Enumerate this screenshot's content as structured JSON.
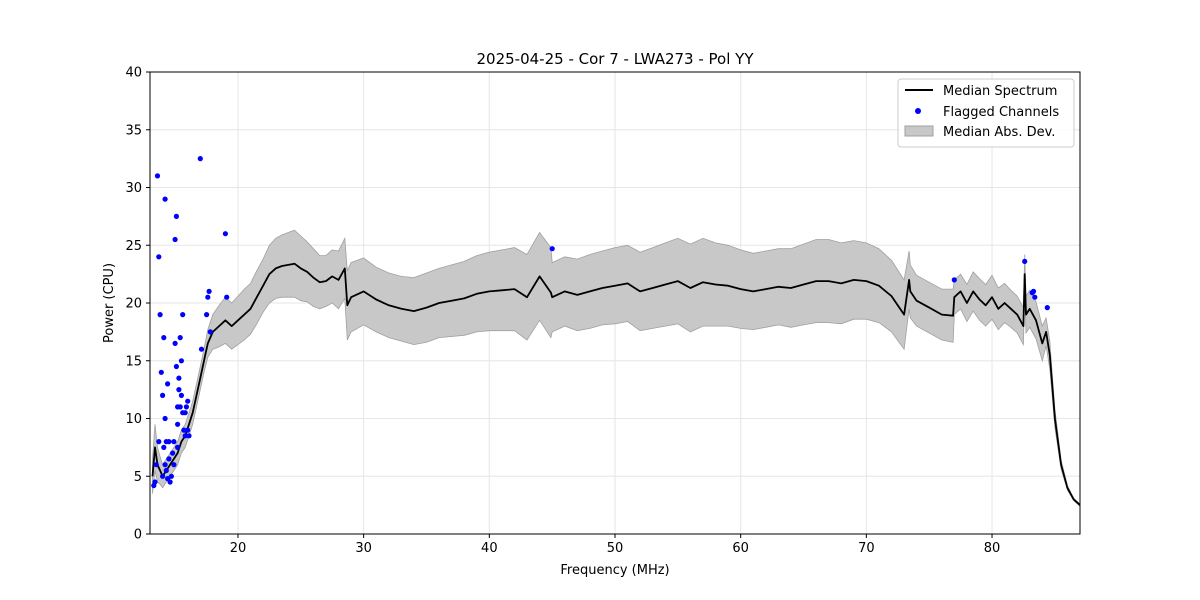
{
  "chart_data": {
    "type": "line",
    "title": "2025-04-25 - Cor 7 - LWA273 - Pol YY",
    "xlabel": "Frequency (MHz)",
    "ylabel": "Power (CPU)",
    "xlim": [
      13.0,
      87.0
    ],
    "ylim": [
      0,
      40
    ],
    "xticks": [
      20,
      30,
      40,
      50,
      60,
      70,
      80
    ],
    "yticks": [
      0,
      5,
      10,
      15,
      20,
      25,
      30,
      35,
      40
    ],
    "grid": true,
    "legend_position": "top-right",
    "legend": [
      "Median Spectrum",
      "Flagged Channels",
      "Median Abs. Dev."
    ],
    "colors": {
      "median": "#000000",
      "flagged": "#0000ff",
      "mad_fill": "#c8c8c8",
      "mad_edge": "#a0a0a0"
    },
    "series": [
      {
        "name": "Median Spectrum",
        "x": [
          13.2,
          13.4,
          13.6,
          13.8,
          14.0,
          14.3,
          14.6,
          14.9,
          15.2,
          15.5,
          15.8,
          16.1,
          16.4,
          16.7,
          17.0,
          17.3,
          17.6,
          18.0,
          18.5,
          19.0,
          19.5,
          20.0,
          20.5,
          21.0,
          21.5,
          22.0,
          22.5,
          23.0,
          23.5,
          24.0,
          24.5,
          25.0,
          25.5,
          26.0,
          26.5,
          27.0,
          27.5,
          28.0,
          28.5,
          28.7,
          29.0,
          30.0,
          31.0,
          32.0,
          33.0,
          34.0,
          35.0,
          36.0,
          37.0,
          38.0,
          39.0,
          40.0,
          41.0,
          42.0,
          43.0,
          44.0,
          44.9,
          45.0,
          46.0,
          47.0,
          48.0,
          49.0,
          50.0,
          51.0,
          52.0,
          53.0,
          54.0,
          55.0,
          56.0,
          57.0,
          58.0,
          59.0,
          60.0,
          61.0,
          62.0,
          63.0,
          64.0,
          65.0,
          66.0,
          67.0,
          68.0,
          69.0,
          70.0,
          71.0,
          72.0,
          73.0,
          73.4,
          73.5,
          74.0,
          75.0,
          76.0,
          76.9,
          77.0,
          77.5,
          78.0,
          78.5,
          79.0,
          79.5,
          80.0,
          80.5,
          81.0,
          81.5,
          82.0,
          82.5,
          82.6,
          82.7,
          83.0,
          83.5,
          84.0,
          84.3,
          84.6,
          85.0,
          85.5,
          86.0,
          86.5,
          87.0
        ],
        "values": [
          5.0,
          7.5,
          6.0,
          5.5,
          5.0,
          5.5,
          6.0,
          6.5,
          7.0,
          8.0,
          8.5,
          9.5,
          10.5,
          12.0,
          13.5,
          15.0,
          16.5,
          17.5,
          18.0,
          18.5,
          18.0,
          18.5,
          19.0,
          19.5,
          20.5,
          21.5,
          22.5,
          23.0,
          23.2,
          23.3,
          23.4,
          23.0,
          22.7,
          22.2,
          21.8,
          21.9,
          22.3,
          22.0,
          23.0,
          19.8,
          20.5,
          21.0,
          20.3,
          19.8,
          19.5,
          19.3,
          19.6,
          20.0,
          20.2,
          20.4,
          20.8,
          21.0,
          21.1,
          21.2,
          20.5,
          22.3,
          20.9,
          20.5,
          21.0,
          20.7,
          21.0,
          21.3,
          21.5,
          21.7,
          21.0,
          21.3,
          21.6,
          21.9,
          21.3,
          21.8,
          21.6,
          21.5,
          21.2,
          21.0,
          21.2,
          21.4,
          21.3,
          21.6,
          21.9,
          21.9,
          21.7,
          22.0,
          21.9,
          21.5,
          20.6,
          19.0,
          22.0,
          21.0,
          20.2,
          19.6,
          19.0,
          18.9,
          20.5,
          21.0,
          20.0,
          21.0,
          20.3,
          19.8,
          20.5,
          19.5,
          20.0,
          19.5,
          19.0,
          18.0,
          22.5,
          19.0,
          19.5,
          18.5,
          16.5,
          17.5,
          15.5,
          10.0,
          6.0,
          4.0,
          3.0,
          2.5
        ],
        "mad": [
          1.5,
          2.0,
          1.5,
          1.2,
          1.0,
          1.0,
          1.0,
          1.0,
          1.0,
          1.0,
          1.0,
          1.0,
          1.0,
          1.0,
          1.0,
          1.0,
          1.2,
          1.5,
          1.8,
          2.0,
          2.0,
          2.1,
          2.2,
          2.2,
          2.3,
          2.3,
          2.5,
          2.6,
          2.7,
          2.8,
          2.9,
          2.8,
          2.6,
          2.5,
          2.3,
          2.2,
          2.3,
          2.5,
          2.6,
          3.0,
          3.0,
          2.9,
          2.8,
          2.8,
          2.8,
          2.9,
          3.0,
          3.0,
          3.1,
          3.2,
          3.3,
          3.4,
          3.5,
          3.6,
          3.7,
          3.8,
          3.9,
          3.0,
          3.0,
          3.1,
          3.2,
          3.2,
          3.3,
          3.3,
          3.4,
          3.5,
          3.6,
          3.7,
          3.8,
          3.8,
          3.6,
          3.5,
          3.4,
          3.3,
          3.3,
          3.3,
          3.4,
          3.5,
          3.6,
          3.6,
          3.5,
          3.4,
          3.3,
          3.2,
          3.1,
          3.0,
          2.5,
          2.3,
          2.2,
          2.2,
          2.2,
          2.3,
          1.5,
          1.5,
          1.6,
          1.7,
          1.8,
          1.8,
          1.9,
          1.8,
          1.7,
          1.6,
          1.6,
          1.6,
          1.7,
          1.6,
          1.6,
          1.6,
          1.5,
          1.2,
          1.2,
          0.8,
          0.4,
          0.2,
          0.1,
          0.1
        ]
      },
      {
        "name": "Flagged Channels",
        "x": [
          13.3,
          13.4,
          13.5,
          13.6,
          13.7,
          13.7,
          13.8,
          13.9,
          14.0,
          14.0,
          14.1,
          14.1,
          14.2,
          14.2,
          14.2,
          14.3,
          14.3,
          14.4,
          14.4,
          14.5,
          14.5,
          14.6,
          14.7,
          14.8,
          14.9,
          14.9,
          15.0,
          15.0,
          15.1,
          15.1,
          15.2,
          15.2,
          15.2,
          15.3,
          15.3,
          15.4,
          15.4,
          15.5,
          15.5,
          15.6,
          15.6,
          15.7,
          15.8,
          15.8,
          15.9,
          16.0,
          16.0,
          16.1,
          17.0,
          17.1,
          17.5,
          17.6,
          17.7,
          17.8,
          19.0,
          19.1,
          45.0,
          77.0,
          82.6,
          83.2,
          83.3,
          83.4,
          84.4
        ],
        "values": [
          4.2,
          4.5,
          6.0,
          31.0,
          24.0,
          8.0,
          19.0,
          14.0,
          5.0,
          12.0,
          7.5,
          17.0,
          29.0,
          10.0,
          6.0,
          8.0,
          5.5,
          4.8,
          13.0,
          8.0,
          6.5,
          4.5,
          5.0,
          7.0,
          8.0,
          6.0,
          25.5,
          16.5,
          14.5,
          27.5,
          7.5,
          9.5,
          11.0,
          12.5,
          13.5,
          11.0,
          17.0,
          15.0,
          12.0,
          19.0,
          10.5,
          9.0,
          10.5,
          8.5,
          11.0,
          11.5,
          9.0,
          8.5,
          32.5,
          16.0,
          19.0,
          20.5,
          21.0,
          17.5,
          26.0,
          20.5,
          24.7,
          22.0,
          23.6,
          20.9,
          21.0,
          20.5,
          19.6
        ]
      }
    ]
  }
}
